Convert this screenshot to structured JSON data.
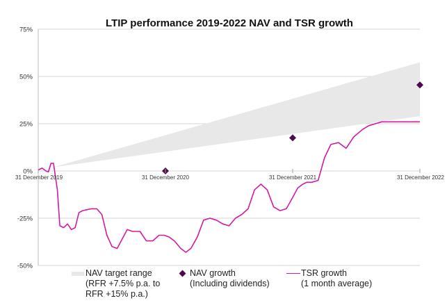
{
  "chart_data": {
    "type": "line",
    "title": "LTIP performance 2019-2022 NAV and TSR growth",
    "ylim": [
      -50,
      75
    ],
    "yticks": [
      75,
      50,
      25,
      0,
      -25,
      -50
    ],
    "ytick_labels": [
      "75%",
      "50%",
      "25%",
      "0%",
      "-25%",
      "-50%"
    ],
    "xlim": [
      0,
      3
    ],
    "xticks": [
      0,
      1,
      2,
      3
    ],
    "xtick_labels": [
      "31 December 2019",
      "31 December 2020",
      "31 December 2021",
      "31 December 2022"
    ],
    "grid": true,
    "legend_position": "bottom",
    "target_range": {
      "name": "NAV target range\n(RFR +7.5% p.a. to\nRFR +15% p.a.)",
      "x": [
        0.12,
        3
      ],
      "lower": [
        2,
        29
      ],
      "upper": [
        2,
        57.5
      ],
      "color": "#e8e8e8"
    },
    "nav_growth": {
      "name": "NAV growth\n(Including dividends)",
      "x": [
        1,
        2,
        3
      ],
      "y": [
        0,
        17.5,
        45.5
      ],
      "color": "#4b0a4b"
    },
    "tsr_growth": {
      "name": "TSR growth\n(1 month average)",
      "color": "#d21aa3",
      "x": [
        0,
        0.03,
        0.06,
        0.08,
        0.1,
        0.12,
        0.15,
        0.17,
        0.2,
        0.23,
        0.26,
        0.29,
        0.32,
        0.35,
        0.38,
        0.42,
        0.46,
        0.5,
        0.54,
        0.58,
        0.62,
        0.66,
        0.7,
        0.74,
        0.8,
        0.85,
        0.9,
        0.95,
        0.99,
        1.03,
        1.07,
        1.12,
        1.16,
        1.2,
        1.25,
        1.3,
        1.35,
        1.4,
        1.45,
        1.5,
        1.55,
        1.6,
        1.65,
        1.7,
        1.75,
        1.8,
        1.85,
        1.9,
        1.95,
        2.0,
        2.04,
        2.08,
        2.11,
        2.15,
        2.2,
        2.25,
        2.3,
        2.36,
        2.42,
        2.48,
        2.55,
        2.6,
        2.65,
        2.7,
        2.75,
        2.79,
        2.84,
        2.88,
        2.93,
        2.97,
        3.0
      ],
      "y": [
        0.5,
        1.5,
        0,
        -0.5,
        4,
        4,
        -10,
        -29,
        -30,
        -28,
        -31,
        -30,
        -22,
        -21,
        -20.5,
        -20,
        -20,
        -23,
        -34,
        -40,
        -41,
        -36,
        -31,
        -32,
        -32,
        -37,
        -37,
        -34,
        -34,
        -35,
        -37,
        -41,
        -43,
        -41,
        -35,
        -26,
        -25,
        -26,
        -28,
        -29,
        -25,
        -23,
        -20,
        -10,
        -7,
        -10,
        -19,
        -21,
        -20,
        -14,
        -9,
        -7,
        -6,
        -6,
        -5,
        7,
        14,
        15,
        12,
        18,
        22,
        24,
        25,
        26,
        26,
        26,
        26,
        26,
        26,
        26,
        26
      ]
    }
  }
}
